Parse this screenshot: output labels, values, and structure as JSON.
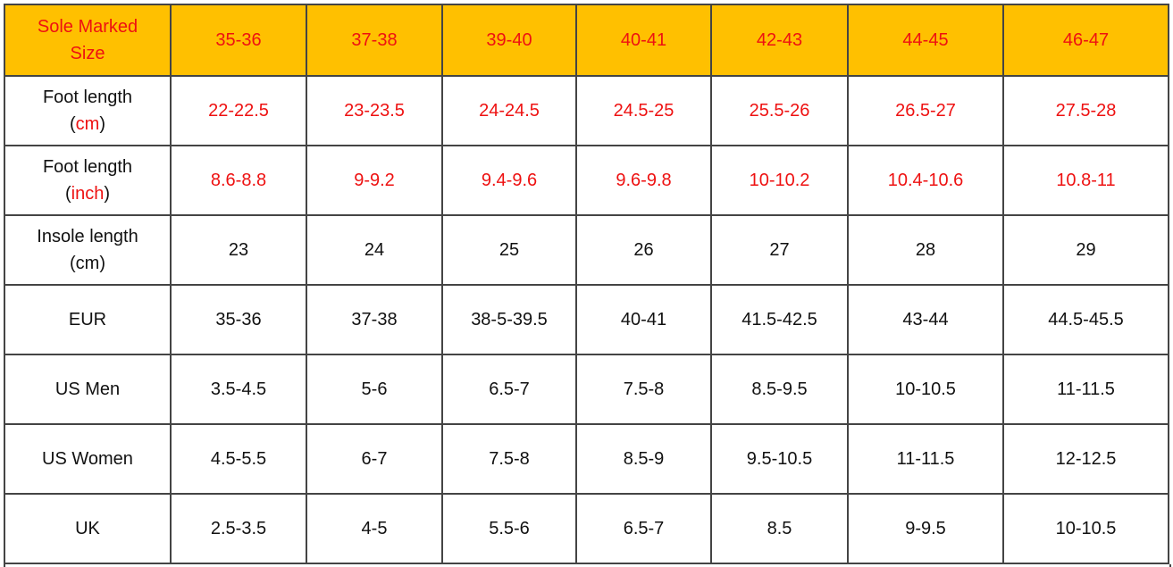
{
  "colors": {
    "header_bg": "#FFC000",
    "accent_red": "#EE1111"
  },
  "header": {
    "label_line1": "Sole Marked",
    "label_line2": "Size",
    "sizes": [
      "35-36",
      "37-38",
      "39-40",
      "40-41",
      "42-43",
      "44-45",
      "46-47"
    ]
  },
  "rows": [
    {
      "label": "Foot length",
      "unit": "cm",
      "unit_red": true,
      "values_red": true,
      "values": [
        "22-22.5",
        "23-23.5",
        "24-24.5",
        "24.5-25",
        "25.5-26",
        "26.5-27",
        "27.5-28"
      ]
    },
    {
      "label": "Foot length",
      "unit": "inch",
      "unit_red": true,
      "values_red": true,
      "values": [
        "8.6-8.8",
        "9-9.2",
        "9.4-9.6",
        "9.6-9.8",
        "10-10.2",
        "10.4-10.6",
        "10.8-11"
      ]
    },
    {
      "label": "Insole length",
      "unit": "cm",
      "unit_red": false,
      "values_red": false,
      "values": [
        "23",
        "24",
        "25",
        "26",
        "27",
        "28",
        "29"
      ]
    },
    {
      "label": "EUR",
      "values": [
        "35-36",
        "37-38",
        "38-5-39.5",
        "40-41",
        "41.5-42.5",
        "43-44",
        "44.5-45.5"
      ]
    },
    {
      "label": "US Men",
      "values": [
        "3.5-4.5",
        "5-6",
        "6.5-7",
        "7.5-8",
        "8.5-9.5",
        "10-10.5",
        "11-11.5"
      ]
    },
    {
      "label": "US Women",
      "values": [
        "4.5-5.5",
        "6-7",
        "7.5-8",
        "8.5-9",
        "9.5-10.5",
        "11-11.5",
        "12-12.5"
      ]
    },
    {
      "label": "UK",
      "values": [
        "2.5-3.5",
        "4-5",
        "5.5-6",
        "6.5-7",
        "8.5",
        "9-9.5",
        "10-10.5"
      ]
    }
  ]
}
